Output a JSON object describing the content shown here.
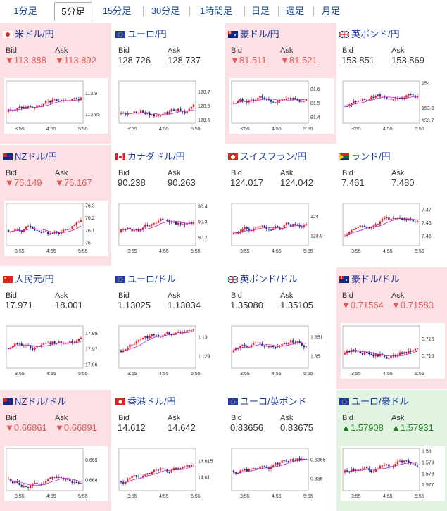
{
  "tabs": [
    {
      "label": "1分足",
      "active": false
    },
    {
      "label": "5分足",
      "active": true
    },
    {
      "label": "15分足",
      "active": false
    },
    {
      "label": "30分足",
      "active": false
    },
    {
      "label": "1時間足",
      "active": false
    },
    {
      "label": "日足",
      "active": false
    },
    {
      "label": "週足",
      "active": false
    },
    {
      "label": "月足",
      "active": false
    }
  ],
  "labels": {
    "bid": "Bid",
    "ask": "Ask"
  },
  "time_ticks": [
    "3:55",
    "4:55",
    "5:55"
  ],
  "colors": {
    "up": "#e8202a",
    "down": "#1a2a9a",
    "ma": "#c020c0",
    "red_bg": "#fde0e3",
    "green_bg": "#e1f3e1"
  },
  "cards": [
    {
      "title": "米ドル/円",
      "flag": "jp",
      "bid": "▼113.888",
      "ask": "▼113.892",
      "dir": "down",
      "bg": "red",
      "yticks": [
        "113.9",
        "113.85"
      ],
      "ylim": [
        113.83,
        113.93
      ]
    },
    {
      "title": "ユーロ/円",
      "flag": "eu",
      "bid": "128.726",
      "ask": "128.737",
      "dir": "none",
      "bg": "white",
      "yticks": [
        "128.7",
        "128.6",
        "128.5"
      ],
      "ylim": [
        128.48,
        128.78
      ]
    },
    {
      "title": "豪ドル/円",
      "flag": "au",
      "bid": "▼81.511",
      "ask": "▼81.521",
      "dir": "down",
      "bg": "red",
      "yticks": [
        "81.6",
        "81.5",
        "81.4"
      ],
      "ylim": [
        81.36,
        81.66
      ]
    },
    {
      "title": "英ポンド/円",
      "flag": "gb",
      "bid": "153.851",
      "ask": "153.869",
      "dir": "none",
      "bg": "white",
      "yticks": [
        "154",
        "153.8",
        "153.7"
      ],
      "ylim": [
        153.68,
        154.02
      ]
    },
    {
      "title": "NZドル/円",
      "flag": "nz",
      "bid": "▼76.149",
      "ask": "▼76.167",
      "dir": "down",
      "bg": "red",
      "yticks": [
        "76.3",
        "76.2",
        "76.1",
        "76"
      ],
      "ylim": [
        75.98,
        76.32
      ]
    },
    {
      "title": "カナダドル/円",
      "flag": "ca",
      "bid": "90.238",
      "ask": "90.263",
      "dir": "none",
      "bg": "white",
      "yticks": [
        "90.4",
        "90.3",
        "90.2"
      ],
      "ylim": [
        90.15,
        90.42
      ]
    },
    {
      "title": "スイスフラン/円",
      "flag": "ch",
      "bid": "124.017",
      "ask": "124.042",
      "dir": "none",
      "bg": "white",
      "yticks": [
        "124",
        "123.9"
      ],
      "ylim": [
        123.85,
        124.07
      ]
    },
    {
      "title": "ランド/円",
      "flag": "za",
      "bid": "7.461",
      "ask": "7.480",
      "dir": "none",
      "bg": "white",
      "yticks": [
        "7.47",
        "7.46",
        "7.45"
      ],
      "ylim": [
        7.443,
        7.475
      ]
    },
    {
      "title": "人民元/円",
      "flag": "cn",
      "bid": "17.971",
      "ask": "18.001",
      "dir": "none",
      "bg": "white",
      "yticks": [
        "17.98",
        "17.97",
        "17.96"
      ],
      "ylim": [
        17.958,
        17.985
      ]
    },
    {
      "title": "ユーロ/ドル",
      "flag": "eu",
      "bid": "1.13025",
      "ask": "1.13034",
      "dir": "none",
      "bg": "white",
      "yticks": [
        "1.13",
        "1.129"
      ],
      "ylim": [
        1.1284,
        1.1306
      ]
    },
    {
      "title": "英ポンド/ドル",
      "flag": "gb",
      "bid": "1.35080",
      "ask": "1.35105",
      "dir": "none",
      "bg": "white",
      "yticks": [
        "1.351",
        "1.35"
      ],
      "ylim": [
        1.3494,
        1.3516
      ]
    },
    {
      "title": "豪ドル/ドル",
      "flag": "au",
      "bid": "▼0.71564",
      "ask": "▼0.71583",
      "dir": "down",
      "bg": "red",
      "yticks": [
        "0.716",
        "0.715"
      ],
      "ylim": [
        0.7143,
        0.7168
      ]
    },
    {
      "title": "NZドル/ドル",
      "flag": "nz",
      "bid": "▼0.66861",
      "ask": "▼0.66891",
      "dir": "down",
      "bg": "red",
      "yticks": [
        "0.669",
        "0.668"
      ],
      "ylim": [
        0.6675,
        0.6696
      ]
    },
    {
      "title": "香港ドル/円",
      "flag": "hk",
      "bid": "14.612",
      "ask": "14.642",
      "dir": "none",
      "bg": "white",
      "yticks": [
        "14.615",
        "14.61"
      ],
      "ylim": [
        14.606,
        14.619
      ]
    },
    {
      "title": "ユーロ/英ポンド",
      "flag": "eu",
      "bid": "0.83656",
      "ask": "0.83675",
      "dir": "none",
      "bg": "white",
      "yticks": [
        "0.8365",
        "0.836"
      ],
      "ylim": [
        0.8357,
        0.8368
      ]
    },
    {
      "title": "ユーロ/豪ドル",
      "flag": "eu",
      "bid": "▲1.57908",
      "ask": "▲1.57931",
      "dir": "up",
      "bg": "green",
      "yticks": [
        "1.58",
        "1.579",
        "1.578",
        "1.577"
      ],
      "ylim": [
        1.5765,
        1.5803
      ]
    }
  ]
}
